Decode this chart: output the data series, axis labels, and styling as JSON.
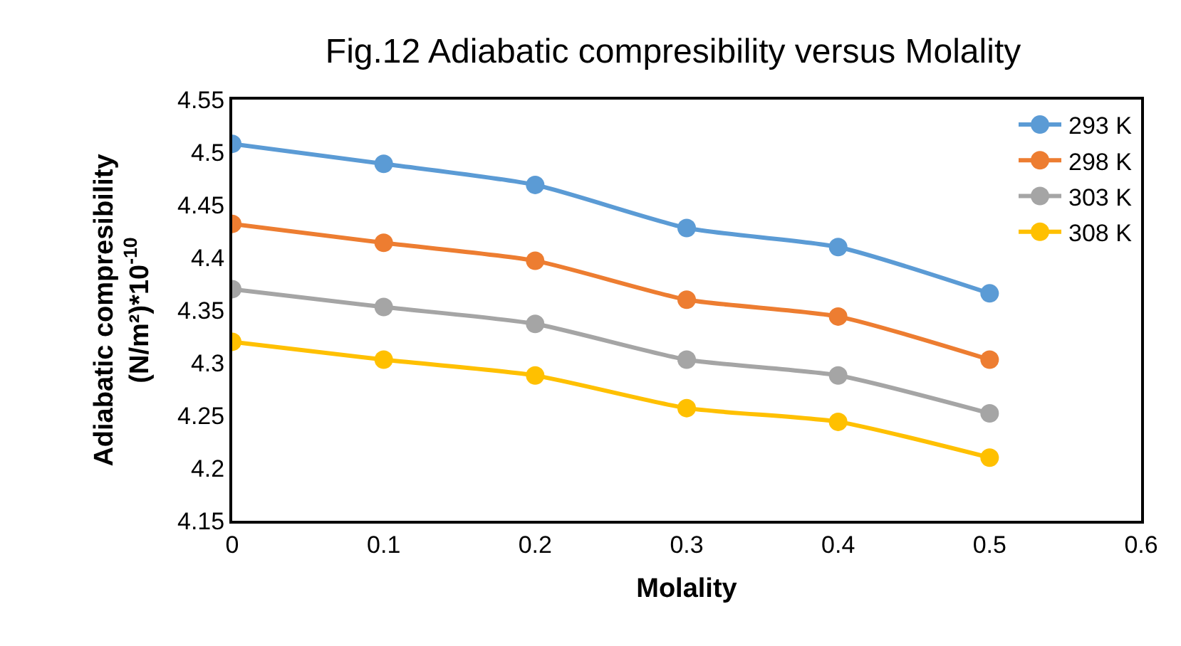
{
  "chart_data": {
    "type": "line",
    "title": "Fig.12 Adiabatic compresibility versus Molality",
    "xlabel": "Molality",
    "ylabel": "Adiabatic compresibility (N/m²)*10$^{-10}$",
    "x": [
      0,
      0.1,
      0.2,
      0.3,
      0.4,
      0.5
    ],
    "series": [
      {
        "name": "293 K",
        "color": "#5b9bd5",
        "values": [
          4.508,
          4.489,
          4.469,
          4.428,
          4.41,
          4.366
        ]
      },
      {
        "name": "298 K",
        "color": "#ed7d31",
        "values": [
          4.432,
          4.414,
          4.397,
          4.36,
          4.344,
          4.303
        ]
      },
      {
        "name": "303 K",
        "color": "#a5a5a5",
        "values": [
          4.37,
          4.353,
          4.337,
          4.303,
          4.288,
          4.252
        ]
      },
      {
        "name": "308 K",
        "color": "#ffc000",
        "values": [
          4.32,
          4.303,
          4.288,
          4.257,
          4.244,
          4.21
        ]
      }
    ],
    "xlim": [
      0,
      0.6
    ],
    "xticks": [
      0,
      0.1,
      0.2,
      0.3,
      0.4,
      0.5,
      0.6
    ],
    "ylim": [
      4.15,
      4.55
    ],
    "yticks": [
      4.15,
      4.2,
      4.25,
      4.3,
      4.35,
      4.4,
      4.45,
      4.5,
      4.55
    ],
    "grid": false,
    "legend": "top right",
    "marker": "circle",
    "line_style": "solid"
  }
}
